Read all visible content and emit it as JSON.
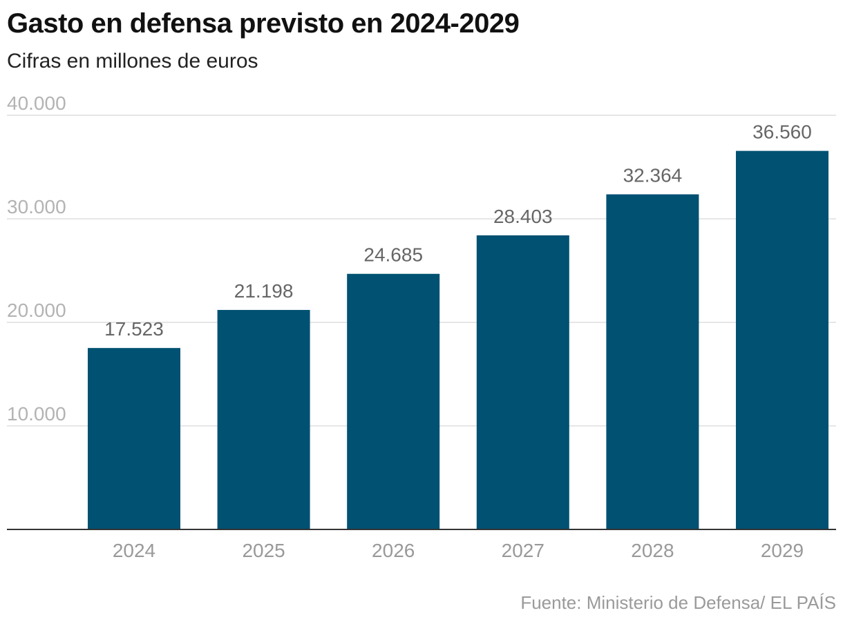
{
  "title": "Gasto en defensa previsto en 2024-2029",
  "subtitle": "Cifras en millones de euros",
  "source": "Fuente: Ministerio de Defensa/ EL PAÍS",
  "colors": {
    "bar": "#005172",
    "grid": "#e6e6e6",
    "axis": "#333333"
  },
  "chart_data": {
    "type": "bar",
    "categories": [
      "2024",
      "2025",
      "2026",
      "2027",
      "2028",
      "2029"
    ],
    "values": [
      17523,
      21198,
      24685,
      28403,
      32364,
      36560
    ],
    "value_labels": [
      "17.523",
      "21.198",
      "24.685",
      "28.403",
      "32.364",
      "36.560"
    ],
    "yticks": [
      10000,
      20000,
      30000,
      40000
    ],
    "ytick_labels": [
      "10.000",
      "20.000",
      "30.000",
      "40.000"
    ],
    "ylim": [
      0,
      40000
    ],
    "grid": true,
    "title": "Gasto en defensa previsto en 2024-2029",
    "subtitle": "Cifras en millones de euros"
  }
}
